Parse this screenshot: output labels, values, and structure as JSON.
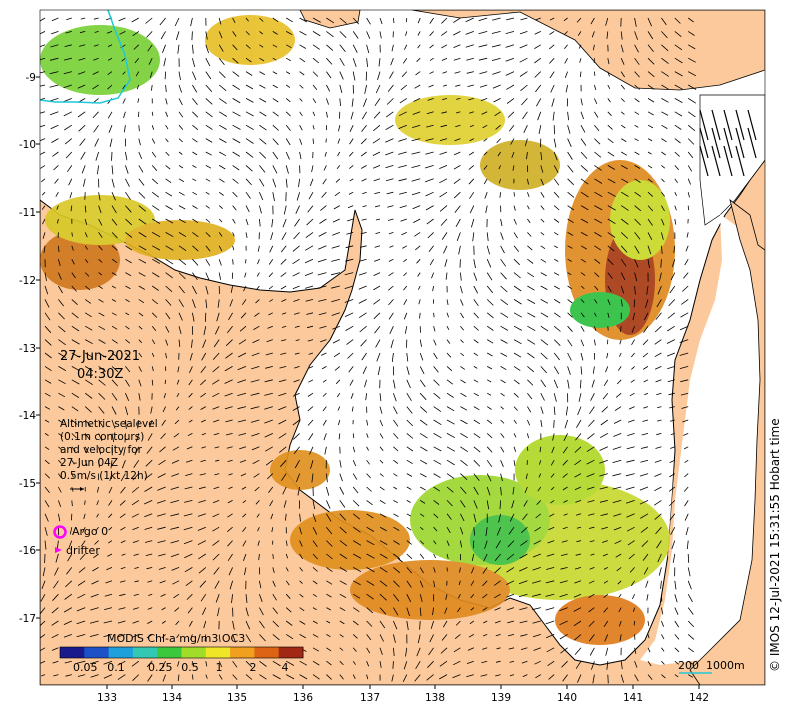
{
  "map": {
    "colors": {
      "land": "#fbc99b",
      "water": "#ffffff",
      "coast": "#000000",
      "vector": "#000000",
      "argo_marker": "#ff00ff",
      "drifter_marker": "#ff00ff",
      "contour": "#1ec8d8"
    },
    "x_ticks": [
      "133",
      "134",
      "135",
      "136",
      "137",
      "138",
      "139",
      "140",
      "141",
      "142"
    ],
    "y_ticks": [
      "-9",
      "-10",
      "-11",
      "-12",
      "-13",
      "-14",
      "-15",
      "-16",
      "-17"
    ]
  },
  "overlay": {
    "date": "27-Jun-2021",
    "time": "04:30Z",
    "legend_lines": [
      "Altimetric sealevel",
      "(0.1m contours)",
      "and velocity for",
      "27-Jun 04Z",
      "0.5m/s (1kt 12h)"
    ],
    "argo_label": "Argo 0",
    "drifter_label": "drifter"
  },
  "colorbar": {
    "title": "MODIS Chl-a mg/m3 OC3",
    "tick_labels": [
      "0.05",
      "0.1",
      "0.25",
      "0.5",
      "1",
      "2",
      "4"
    ],
    "colors": [
      "#1a1a8c",
      "#1e50c8",
      "#1ea0dc",
      "#32c8b4",
      "#3cc83c",
      "#a0dc28",
      "#f0e628",
      "#f0a01e",
      "#dc6414",
      "#a02814"
    ]
  },
  "scale_bar": {
    "label_left": "200",
    "label_right": "1000m"
  },
  "credit": "© IMOS 12-Jul-2021 15:31:55 Hobart time"
}
